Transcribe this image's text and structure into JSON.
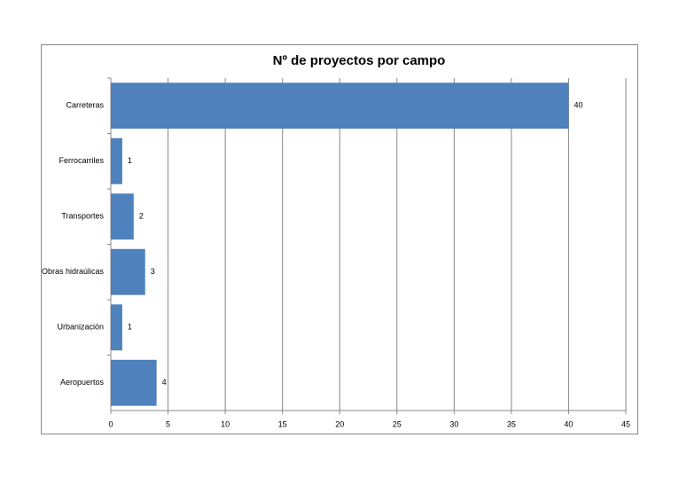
{
  "chart_data": {
    "type": "barh",
    "title": "Nº de proyectos por campo",
    "categories": [
      "Carreteras",
      "Ferrocarriles",
      "Transportes",
      "Obras hidraúlicas",
      "Urbanización",
      "Aeropuertos"
    ],
    "values": [
      40,
      1,
      2,
      3,
      1,
      4
    ],
    "color": "#4f81bd",
    "xlim": [
      0,
      45
    ],
    "xticks": [
      0,
      5,
      10,
      15,
      20,
      25,
      30,
      35,
      40,
      45
    ],
    "grid": true
  }
}
